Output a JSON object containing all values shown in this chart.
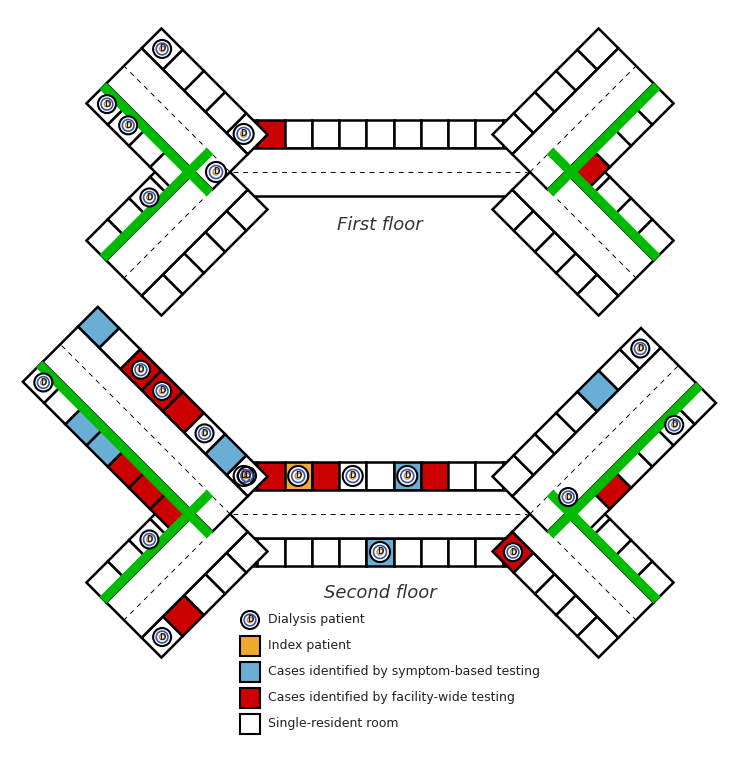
{
  "title_first": "First floor",
  "title_second": "Second floor",
  "bg_color": "#ffffff",
  "W": "#ffffff",
  "R": "#cc0000",
  "B": "#6aaed6",
  "O": "#f0a830",
  "GRN": "#00bb00",
  "lw": 1.8,
  "legend_items": [
    {
      "label": "Dialysis patient",
      "type": "dialysis"
    },
    {
      "label": "Index patient",
      "color": "#f0a830"
    },
    {
      "label": "Cases identified by symptom-based testing",
      "color": "#6aaed6"
    },
    {
      "label": "Cases identified by facility-wide testing",
      "color": "#cc0000"
    },
    {
      "label": "Single-resident room",
      "color": "#ffffff"
    }
  ]
}
